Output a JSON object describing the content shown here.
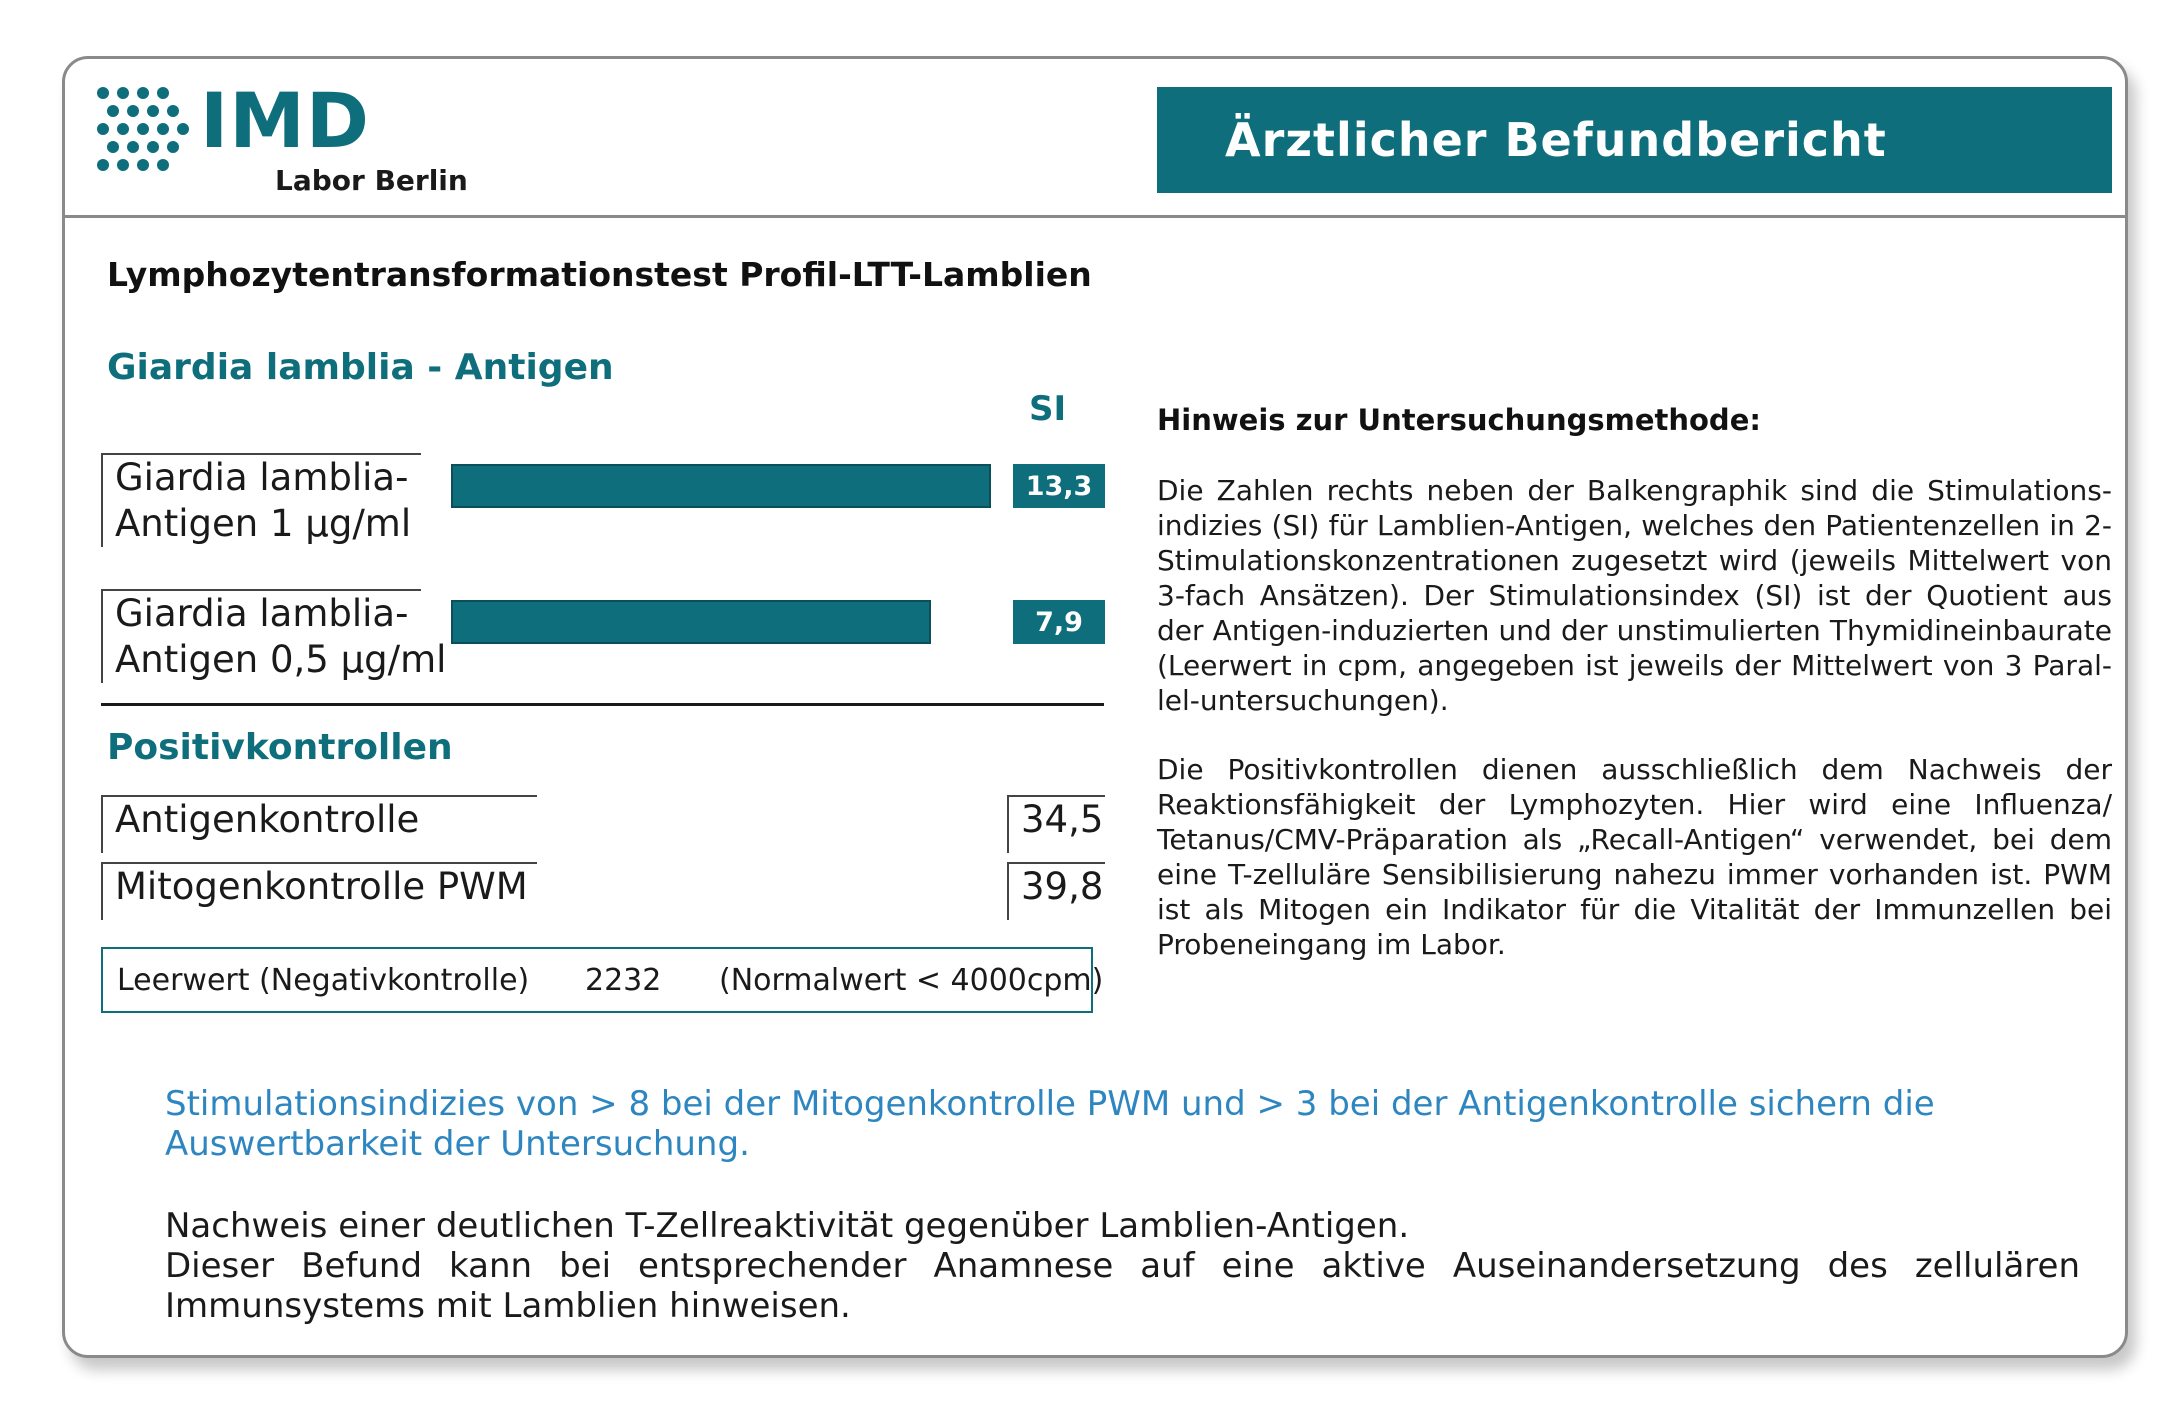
{
  "brand": {
    "name": "IMD",
    "subtitle": "Labor Berlin",
    "color": "#0f6e7c"
  },
  "banner": {
    "title": "Ärztlicher Befundbericht"
  },
  "test_title": "Lymphozytentransformationstest Profil-LTT-Lamblien",
  "antigen_section": {
    "heading": "Giardia lamblia - Antigen",
    "si_header": "SI",
    "rows": [
      {
        "label_line1": "Giardia lamblia-",
        "label_line2": "Antigen 1 µg/ml",
        "si": "13,3",
        "si_value": 13.3
      },
      {
        "label_line1": "Giardia lamblia-",
        "label_line2": "Antigen 0,5 µg/ml",
        "si": "7,9",
        "si_value": 7.9
      }
    ]
  },
  "positive_controls": {
    "heading": "Positivkontrollen",
    "rows": [
      {
        "label": "Antigenkontrolle",
        "value": "34,5"
      },
      {
        "label": "Mitogenkontrolle PWM",
        "value": "39,8"
      }
    ]
  },
  "blank": {
    "label": "Leerwert (Negativkontrolle)",
    "value": "2232",
    "normal": "(Normalwert < 4000cpm)"
  },
  "method_note": {
    "heading": "Hinweis zur Untersuchungsmethode:",
    "paragraph1": "Die Zahlen rechts neben der Balkengraphik sind die Stimulations­indizies (SI) für Lamblien-Antigen, welches den Patientenzellen in 2-Stimulationskonzentrationen zugesetzt wird (jeweils Mittelwert von 3-fach Ansätzen). Der Stimulationsindex (SI) ist der Quotient aus der Antigen-induzierten und der unstimulierten Thymidineinbaurate (Leerwert in cpm, angegeben ist jeweils der Mittelwert von 3 Paral­lel-untersuchungen).",
    "paragraph2": "Die Positivkontrollen dienen ausschließlich dem Nachweis der Reaktionsfähigkeit der Lymphozyten. Hier wird eine Influenza/ Tetanus/CMV-Präparation als „Recall-Antigen“ verwendet, bei dem eine T-zelluläre Sensibilisierung nahezu immer vorhanden ist. PWM ist als Mitogen ein Indikator für die Vitalität der Immunzellen bei Pro­beneingang im Labor."
  },
  "validity_note": "Stimulationsindizies von > 8 bei der Mitogenkontrolle PWM und > 3 bei der Antigenkontrolle sichern die Auswertbarkeit der Untersuchung.",
  "conclusion": {
    "line1": "Nachweis einer deutlichen T-Zellreaktivität gegenüber Lamblien-Antigen.",
    "line2": "Dieser Befund kann bei entsprechender Anamnese auf eine aktive Auseinandersetzung des zellulären Immunsystems mit Lamblien hinweisen."
  }
}
